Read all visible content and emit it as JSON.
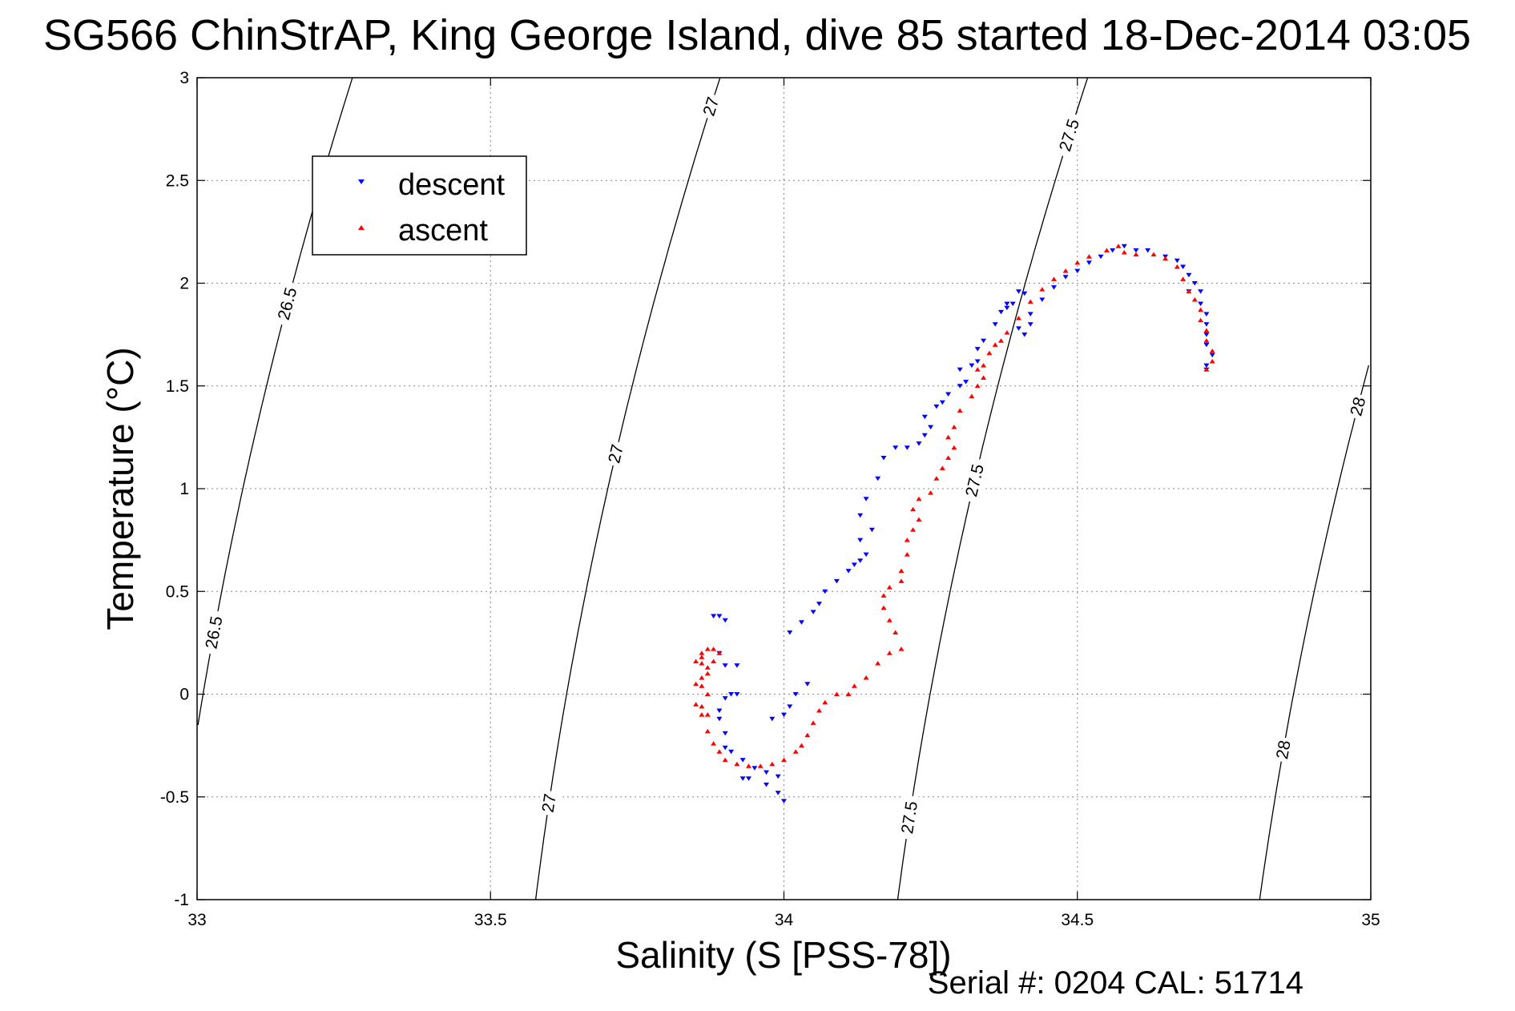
{
  "chart_data": {
    "type": "scatter",
    "title": "SG566 ChinStrAP, King George Island, dive 85 started 18-Dec-2014 03:05",
    "xlabel": "Salinity (S [PSS-78])",
    "ylabel": "Temperature (°C)",
    "xlim": [
      33,
      35
    ],
    "ylim": [
      -1,
      3
    ],
    "xticks": [
      "33",
      "33.5",
      "34",
      "34.5",
      "35"
    ],
    "yticks": [
      "-1",
      "-0.5",
      "0",
      "0.5",
      "1",
      "1.5",
      "2",
      "2.5",
      "3"
    ],
    "grid": true,
    "legend_position": "upper-left",
    "footer": "Serial #: 0204  CAL: 51714",
    "contour_lines": [
      {
        "label": "26.5",
        "s_min": 33,
        "s_max": 33.26
      },
      {
        "label": "27",
        "s_min": 33.58,
        "s_max": 33.87
      },
      {
        "label": "27.5",
        "s_min": 34.2,
        "s_max": 34.52
      },
      {
        "label": "28",
        "s_min": 34.81,
        "s_max": 35.0
      }
    ],
    "contour_labels": [
      {
        "text": "26.5",
        "s": 33.16,
        "t": 1.9
      },
      {
        "text": "26.5",
        "s": 33.03,
        "t": 0.3
      },
      {
        "text": "27",
        "s": 33.87,
        "t": 2.86
      },
      {
        "text": "27",
        "s": 33.71,
        "t": 1.17
      },
      {
        "text": "27",
        "s": 33.6,
        "t": -0.53
      },
      {
        "text": "27.5",
        "s": 34.49,
        "t": 2.72
      },
      {
        "text": "27.5",
        "s": 34.33,
        "t": 1.04
      },
      {
        "text": "27.5",
        "s": 34.22,
        "t": -0.6
      },
      {
        "text": "28",
        "s": 34.98,
        "t": 1.4
      },
      {
        "text": "28",
        "s": 34.85,
        "t": -0.27
      }
    ],
    "series": [
      {
        "name": "descent",
        "color": "#0000ff",
        "marker": "triangle-down",
        "points": [
          [
            33.88,
            0.38
          ],
          [
            33.89,
            0.38
          ],
          [
            33.9,
            0.36
          ],
          [
            33.89,
            0.2
          ],
          [
            33.9,
            0.14
          ],
          [
            33.92,
            0.14
          ],
          [
            33.91,
            0.0
          ],
          [
            33.9,
            -0.02
          ],
          [
            33.92,
            0.0
          ],
          [
            33.89,
            -0.08
          ],
          [
            33.89,
            -0.12
          ],
          [
            33.9,
            -0.19
          ],
          [
            33.9,
            -0.26
          ],
          [
            33.91,
            -0.28
          ],
          [
            33.93,
            -0.32
          ],
          [
            33.95,
            -0.36
          ],
          [
            33.97,
            -0.38
          ],
          [
            33.99,
            -0.4
          ],
          [
            33.93,
            -0.41
          ],
          [
            33.94,
            -0.41
          ],
          [
            33.97,
            -0.44
          ],
          [
            33.99,
            -0.48
          ],
          [
            34.0,
            -0.52
          ],
          [
            33.98,
            -0.12
          ],
          [
            34.0,
            -0.1
          ],
          [
            34.01,
            -0.06
          ],
          [
            34.02,
            0.0
          ],
          [
            34.04,
            0.05
          ],
          [
            34.01,
            0.3
          ],
          [
            34.03,
            0.35
          ],
          [
            34.05,
            0.4
          ],
          [
            34.06,
            0.44
          ],
          [
            34.07,
            0.5
          ],
          [
            34.09,
            0.55
          ],
          [
            34.11,
            0.6
          ],
          [
            34.12,
            0.63
          ],
          [
            34.13,
            0.65
          ],
          [
            34.14,
            0.68
          ],
          [
            34.13,
            0.75
          ],
          [
            34.15,
            0.8
          ],
          [
            34.13,
            0.87
          ],
          [
            34.14,
            0.95
          ],
          [
            34.16,
            1.05
          ],
          [
            34.17,
            1.15
          ],
          [
            34.19,
            1.2
          ],
          [
            34.21,
            1.2
          ],
          [
            34.23,
            1.22
          ],
          [
            34.24,
            1.26
          ],
          [
            34.25,
            1.3
          ],
          [
            34.24,
            1.35
          ],
          [
            34.26,
            1.4
          ],
          [
            34.27,
            1.42
          ],
          [
            34.28,
            1.46
          ],
          [
            34.3,
            1.5
          ],
          [
            34.31,
            1.52
          ],
          [
            34.3,
            1.58
          ],
          [
            34.32,
            1.6
          ],
          [
            34.33,
            1.62
          ],
          [
            34.33,
            1.68
          ],
          [
            34.34,
            1.72
          ],
          [
            34.36,
            1.8
          ],
          [
            34.37,
            1.86
          ],
          [
            34.38,
            1.88
          ],
          [
            34.39,
            1.9
          ],
          [
            34.38,
            1.9
          ],
          [
            34.4,
            1.96
          ],
          [
            34.41,
            1.95
          ],
          [
            34.4,
            1.78
          ],
          [
            34.41,
            1.75
          ],
          [
            34.42,
            1.8
          ],
          [
            34.42,
            1.85
          ],
          [
            34.44,
            1.92
          ],
          [
            34.46,
            1.98
          ],
          [
            34.48,
            2.03
          ],
          [
            34.5,
            2.06
          ],
          [
            34.52,
            2.1
          ],
          [
            34.54,
            2.13
          ],
          [
            34.56,
            2.16
          ],
          [
            34.58,
            2.18
          ],
          [
            34.6,
            2.16
          ],
          [
            34.62,
            2.16
          ],
          [
            34.65,
            2.13
          ],
          [
            34.67,
            2.11
          ],
          [
            34.68,
            2.08
          ],
          [
            34.69,
            2.04
          ],
          [
            34.7,
            2.0
          ],
          [
            34.69,
            1.96
          ],
          [
            34.71,
            1.96
          ],
          [
            34.71,
            1.9
          ],
          [
            34.72,
            1.85
          ],
          [
            34.72,
            1.8
          ],
          [
            34.72,
            1.75
          ],
          [
            34.72,
            1.7
          ],
          [
            34.73,
            1.65
          ],
          [
            34.72,
            1.6
          ],
          [
            34.72,
            1.58
          ]
        ]
      },
      {
        "name": "ascent",
        "color": "#ff0000",
        "marker": "triangle-up",
        "points": [
          [
            34.72,
            1.58
          ],
          [
            34.73,
            1.62
          ],
          [
            34.73,
            1.67
          ],
          [
            34.72,
            1.72
          ],
          [
            34.72,
            1.77
          ],
          [
            34.71,
            1.82
          ],
          [
            34.71,
            1.87
          ],
          [
            34.7,
            1.92
          ],
          [
            34.69,
            1.96
          ],
          [
            34.68,
            2.02
          ],
          [
            34.67,
            2.08
          ],
          [
            34.65,
            2.12
          ],
          [
            34.63,
            2.14
          ],
          [
            34.6,
            2.14
          ],
          [
            34.58,
            2.15
          ],
          [
            34.57,
            2.18
          ],
          [
            34.55,
            2.16
          ],
          [
            34.52,
            2.13
          ],
          [
            34.5,
            2.1
          ],
          [
            34.48,
            2.06
          ],
          [
            34.46,
            2.02
          ],
          [
            34.44,
            1.97
          ],
          [
            34.42,
            1.91
          ],
          [
            34.4,
            1.83
          ],
          [
            34.38,
            1.76
          ],
          [
            34.37,
            1.72
          ],
          [
            34.36,
            1.7
          ],
          [
            34.35,
            1.66
          ],
          [
            34.34,
            1.6
          ],
          [
            34.33,
            1.58
          ],
          [
            34.34,
            1.54
          ],
          [
            34.33,
            1.5
          ],
          [
            34.32,
            1.45
          ],
          [
            34.3,
            1.38
          ],
          [
            34.29,
            1.3
          ],
          [
            34.28,
            1.25
          ],
          [
            34.29,
            1.2
          ],
          [
            34.28,
            1.15
          ],
          [
            34.27,
            1.1
          ],
          [
            34.26,
            1.05
          ],
          [
            34.25,
            0.98
          ],
          [
            34.23,
            0.95
          ],
          [
            34.22,
            0.9
          ],
          [
            34.23,
            0.85
          ],
          [
            34.22,
            0.8
          ],
          [
            34.21,
            0.75
          ],
          [
            34.21,
            0.68
          ],
          [
            34.2,
            0.6
          ],
          [
            34.2,
            0.55
          ],
          [
            34.18,
            0.52
          ],
          [
            34.17,
            0.48
          ],
          [
            34.17,
            0.42
          ],
          [
            34.18,
            0.36
          ],
          [
            34.19,
            0.3
          ],
          [
            34.2,
            0.22
          ],
          [
            34.18,
            0.2
          ],
          [
            34.16,
            0.15
          ],
          [
            34.14,
            0.08
          ],
          [
            34.12,
            0.04
          ],
          [
            34.11,
            0.0
          ],
          [
            34.09,
            0.0
          ],
          [
            34.07,
            -0.04
          ],
          [
            34.06,
            -0.08
          ],
          [
            34.05,
            -0.14
          ],
          [
            34.04,
            -0.2
          ],
          [
            34.03,
            -0.25
          ],
          [
            34.02,
            -0.28
          ],
          [
            34.0,
            -0.32
          ],
          [
            33.98,
            -0.34
          ],
          [
            33.96,
            -0.35
          ],
          [
            33.94,
            -0.35
          ],
          [
            33.92,
            -0.34
          ],
          [
            33.9,
            -0.32
          ],
          [
            33.89,
            -0.28
          ],
          [
            33.88,
            -0.24
          ],
          [
            33.87,
            -0.18
          ],
          [
            33.87,
            -0.1
          ],
          [
            33.86,
            -0.06
          ],
          [
            33.87,
            0.0
          ],
          [
            33.86,
            0.04
          ],
          [
            33.87,
            0.1
          ],
          [
            33.86,
            0.15
          ],
          [
            33.86,
            0.2
          ],
          [
            33.87,
            0.22
          ],
          [
            33.88,
            0.22
          ],
          [
            33.89,
            0.2
          ],
          [
            33.88,
            0.16
          ],
          [
            33.87,
            0.13
          ],
          [
            33.86,
            0.08
          ],
          [
            33.85,
            0.05
          ],
          [
            33.85,
            -0.05
          ],
          [
            33.86,
            -0.1
          ],
          [
            33.86,
            0.18
          ],
          [
            33.85,
            0.16
          ]
        ]
      }
    ]
  }
}
